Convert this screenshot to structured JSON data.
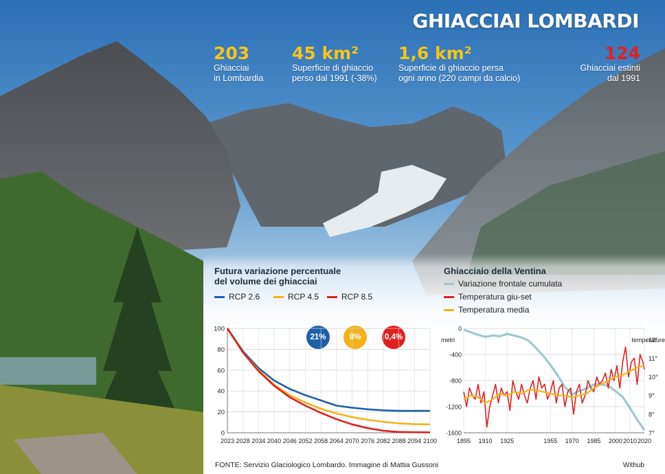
{
  "title": "GHIACCIAI LOMBARDI",
  "stats": [
    {
      "value": "203",
      "label": "Ghiacciai\nin Lombardia",
      "color": "#f5c518"
    },
    {
      "value": "45 km²",
      "label": "Superficie di ghiaccio\nperso dal 1991 (-38%)",
      "color": "#f5c518"
    },
    {
      "value": "1,6 km²",
      "label": "Superficie di ghiaccio persa\nogni anno (220 campi da calcio)",
      "color": "#f5c518"
    },
    {
      "value": "124",
      "label": "Ghiacciai estinti\ndal 1991",
      "color": "#e02020"
    }
  ],
  "source": "FONTE: Servizio Glaciologico Lombardo. Immagine di Mattia Gussoni",
  "credit": "Withub",
  "chart_data": [
    {
      "type": "line",
      "title": "Futura variazione percentuale\ndel volume dei ghiacciai",
      "x": [
        2023,
        2028,
        2034,
        2040,
        2046,
        2052,
        2058,
        2064,
        2070,
        2076,
        2082,
        2088,
        2094,
        2100
      ],
      "xticks": [
        "2023",
        "2028",
        "2034",
        "2040",
        "2046",
        "2052",
        "2058",
        "2064",
        "2070",
        "2076",
        "2082",
        "2088",
        "2094",
        "2100"
      ],
      "yticks": [
        0,
        20,
        40,
        60,
        80,
        100
      ],
      "ylim": [
        0,
        100
      ],
      "series": [
        {
          "name": "RCP 2.6",
          "color": "#1f5fa8",
          "end_label": "21%",
          "values": [
            100,
            78,
            62,
            50,
            42,
            36,
            31,
            26,
            24,
            22.5,
            21.5,
            21,
            21,
            21
          ]
        },
        {
          "name": "RCP 4.5",
          "color": "#f5b21a",
          "end_label": "8%",
          "values": [
            100,
            77,
            60,
            46,
            36,
            29,
            23,
            18.5,
            15,
            12.5,
            10.5,
            9,
            8.3,
            8
          ]
        },
        {
          "name": "RCP 8.5",
          "color": "#e02020",
          "end_label": "0,4%",
          "values": [
            100,
            77,
            59,
            45,
            34,
            26,
            19,
            13,
            8,
            4.5,
            2,
            0.8,
            0.5,
            0.4
          ]
        }
      ]
    },
    {
      "type": "line",
      "title": "Ghiacciaio della Ventina",
      "x_label_ticks": [
        "1895",
        "1910",
        "1925",
        "1955",
        "1970",
        "1985",
        "2000",
        "2010",
        "2020"
      ],
      "x_tick_values": [
        1895,
        1910,
        1925,
        1955,
        1970,
        1985,
        2000,
        2010,
        2020
      ],
      "xlim": [
        1895,
        2020
      ],
      "left_axis": {
        "label": "metri",
        "ticks": [
          "0",
          "-400",
          "-800",
          "-1200",
          "-1600"
        ],
        "tick_values": [
          0,
          -400,
          -800,
          -1200,
          -1600
        ],
        "lim": [
          -1600,
          0
        ]
      },
      "right_axis": {
        "label": "temperature",
        "ticks": [
          "12°",
          "11°",
          "10°",
          "9°",
          "8°",
          "7°"
        ],
        "tick_values": [
          12,
          11,
          10,
          9,
          8,
          7
        ],
        "lim": [
          7,
          12.6
        ]
      },
      "series": [
        {
          "name": "Variazione frontale cumulata",
          "axis": "left",
          "color": "#9cc9cf",
          "x": [
            1895,
            1900,
            1905,
            1910,
            1915,
            1920,
            1925,
            1930,
            1935,
            1940,
            1945,
            1950,
            1955,
            1960,
            1965,
            1970,
            1975,
            1980,
            1985,
            1990,
            1995,
            2000,
            2005,
            2010,
            2015,
            2020
          ],
          "values": [
            -20,
            -60,
            -100,
            -130,
            -110,
            -120,
            -85,
            -110,
            -140,
            -190,
            -300,
            -420,
            -560,
            -720,
            -900,
            -1010,
            -960,
            -920,
            -860,
            -860,
            -880,
            -960,
            -1050,
            -1220,
            -1400,
            -1560
          ]
        },
        {
          "name": "Temperatura giu-set",
          "axis": "right",
          "color": "#e02020",
          "x": [
            1895,
            1897,
            1899,
            1901,
            1903,
            1905,
            1907,
            1909,
            1911,
            1913,
            1915,
            1917,
            1919,
            1921,
            1923,
            1925,
            1927,
            1929,
            1931,
            1933,
            1935,
            1937,
            1939,
            1941,
            1943,
            1945,
            1947,
            1949,
            1951,
            1953,
            1955,
            1957,
            1959,
            1961,
            1963,
            1965,
            1967,
            1969,
            1971,
            1973,
            1975,
            1977,
            1979,
            1981,
            1983,
            1985,
            1987,
            1989,
            1991,
            1993,
            1995,
            1997,
            1999,
            2001,
            2003,
            2005,
            2007,
            2009,
            2011,
            2013,
            2015,
            2017,
            2019,
            2020
          ],
          "values": [
            9.2,
            8.4,
            9.4,
            9.0,
            8.8,
            9.6,
            8.6,
            9.2,
            7.3,
            8.4,
            9.0,
            9.6,
            8.6,
            9.4,
            9.0,
            9.2,
            8.2,
            9.8,
            9.2,
            8.8,
            9.6,
            9.0,
            8.6,
            9.4,
            9.8,
            8.8,
            10.0,
            9.4,
            9.6,
            8.8,
            9.2,
            9.8,
            8.6,
            9.4,
            9.6,
            8.4,
            9.2,
            9.4,
            8.0,
            9.2,
            9.6,
            8.6,
            9.0,
            9.8,
            9.4,
            9.2,
            10.0,
            9.6,
            9.8,
            10.2,
            9.4,
            10.4,
            9.8,
            10.6,
            9.4,
            10.8,
            11.6,
            10.0,
            10.8,
            11.0,
            9.6,
            11.2,
            10.8,
            10.4
          ]
        },
        {
          "name": "Temperatura media",
          "axis": "right",
          "color": "#f5b21a",
          "x": [
            1895,
            1900,
            1905,
            1910,
            1915,
            1920,
            1925,
            1930,
            1935,
            1940,
            1945,
            1950,
            1955,
            1960,
            1965,
            1970,
            1975,
            1980,
            1985,
            1990,
            1995,
            2000,
            2005,
            2010,
            2015,
            2020
          ],
          "values": [
            8.8,
            9.0,
            8.9,
            8.6,
            8.8,
            9.1,
            9.0,
            9.2,
            9.1,
            9.3,
            9.3,
            9.2,
            9.1,
            9.0,
            9.0,
            8.9,
            9.0,
            9.1,
            9.4,
            9.6,
            9.8,
            10.0,
            10.1,
            10.3,
            10.5,
            10.6
          ]
        }
      ]
    }
  ]
}
